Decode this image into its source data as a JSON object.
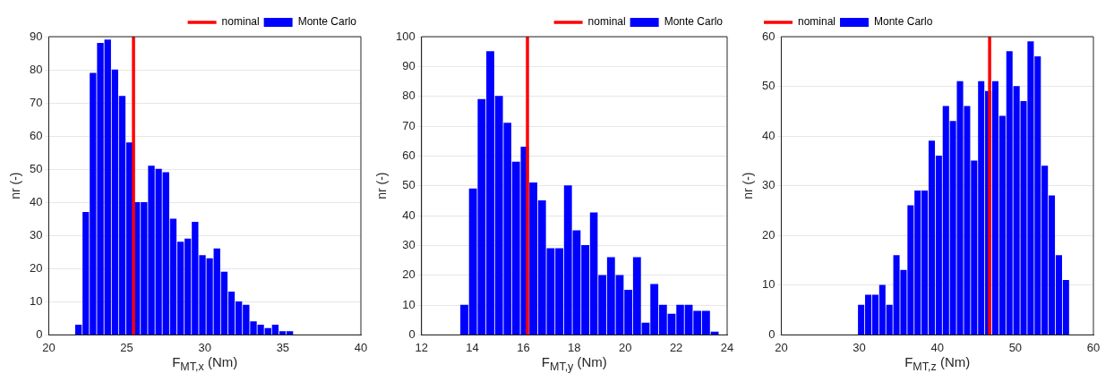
{
  "chart_data": [
    {
      "type": "histogram",
      "xlabel": "F$_{M}$$_{T,x}$ (Nm)",
      "ylabel": "nr (-)",
      "xlim": [
        20,
        40
      ],
      "xticks": [
        20,
        25,
        30,
        35,
        40
      ],
      "ylim": [
        0,
        90
      ],
      "yticks": [
        0,
        10,
        20,
        30,
        40,
        50,
        60,
        70,
        80,
        90
      ],
      "grid": "y",
      "legend": "top right",
      "bins": [
        21.67,
        22.14,
        22.6,
        23.07,
        23.54,
        24.01,
        24.47,
        24.94,
        25.41,
        25.87,
        26.34,
        26.81,
        27.27,
        27.74,
        28.21,
        28.68,
        29.14,
        29.61,
        30.08,
        30.54,
        31.01,
        31.48,
        31.94,
        32.41,
        32.88,
        33.35,
        33.81,
        34.28,
        34.75,
        35.21,
        35.68
      ],
      "series": [
        {
          "name": "Monte Carlo",
          "color": "#0000ff",
          "values": [
            3,
            37,
            79,
            88,
            89,
            80,
            72,
            58,
            40,
            40,
            51,
            50,
            49,
            35,
            28,
            29,
            34,
            24,
            23,
            26,
            19,
            13,
            10,
            9,
            4,
            3,
            2,
            3,
            1,
            1
          ]
        }
      ],
      "ref_lines": [
        {
          "axis": "x",
          "value": 25.43,
          "label": "nominal",
          "color": "#ff0000"
        }
      ]
    },
    {
      "type": "histogram",
      "xlabel": "F$_{M}$$_{T,y}$ (Nm)",
      "ylabel": "nr (-)",
      "xlim": [
        12,
        24
      ],
      "xticks": [
        12,
        14,
        16,
        18,
        20,
        22,
        24
      ],
      "ylim": [
        0,
        100
      ],
      "yticks": [
        0,
        10,
        20,
        30,
        40,
        50,
        60,
        70,
        80,
        90,
        100
      ],
      "grid": "y",
      "legend": "top right",
      "bins": [
        13.51,
        13.85,
        14.19,
        14.53,
        14.87,
        15.21,
        15.54,
        15.88,
        16.22,
        16.56,
        16.9,
        17.24,
        17.58,
        17.92,
        18.26,
        18.6,
        18.93,
        19.27,
        19.61,
        19.95,
        20.29,
        20.63,
        20.97,
        21.31,
        21.65,
        21.99,
        22.32,
        22.66,
        23.0,
        23.34,
        23.68
      ],
      "series": [
        {
          "name": "Monte Carlo",
          "color": "#0000ff",
          "values": [
            10,
            49,
            79,
            95,
            80,
            71,
            58,
            63,
            51,
            45,
            29,
            29,
            50,
            35,
            30,
            41,
            20,
            26,
            20,
            15,
            26,
            4,
            17,
            10,
            7,
            10,
            10,
            8,
            8,
            1
          ]
        }
      ],
      "ref_lines": [
        {
          "axis": "x",
          "value": 16.16,
          "label": "nominal",
          "color": "#ff0000"
        }
      ]
    },
    {
      "type": "histogram",
      "xlabel": "F$_{M}$$_{T,z}$ (Nm)",
      "ylabel": "nr (-)",
      "xlim": [
        20,
        60
      ],
      "xticks": [
        20,
        30,
        40,
        50,
        60
      ],
      "ylim": [
        0,
        60
      ],
      "yticks": [
        0,
        10,
        20,
        30,
        40,
        50,
        60
      ],
      "grid": "y",
      "legend": "top left",
      "bins": [
        29.78,
        30.69,
        31.59,
        32.5,
        33.4,
        34.31,
        35.21,
        36.12,
        37.02,
        37.93,
        38.83,
        39.74,
        40.64,
        41.55,
        42.45,
        43.36,
        44.26,
        45.17,
        46.07,
        46.98,
        47.88,
        48.79,
        49.69,
        50.6,
        51.5,
        52.41,
        53.31,
        54.22,
        55.12,
        56.03,
        56.93
      ],
      "series": [
        {
          "name": "Monte Carlo",
          "color": "#0000ff",
          "values": [
            6,
            8,
            8,
            10,
            6,
            16,
            13,
            26,
            29,
            29,
            39,
            36,
            46,
            43,
            51,
            46,
            35,
            51,
            49,
            51,
            44,
            57,
            50,
            47,
            59,
            56,
            34,
            28,
            16,
            11
          ]
        }
      ],
      "ref_lines": [
        {
          "axis": "x",
          "value": 46.7,
          "label": "nominal",
          "color": "#ff0000"
        }
      ]
    }
  ]
}
